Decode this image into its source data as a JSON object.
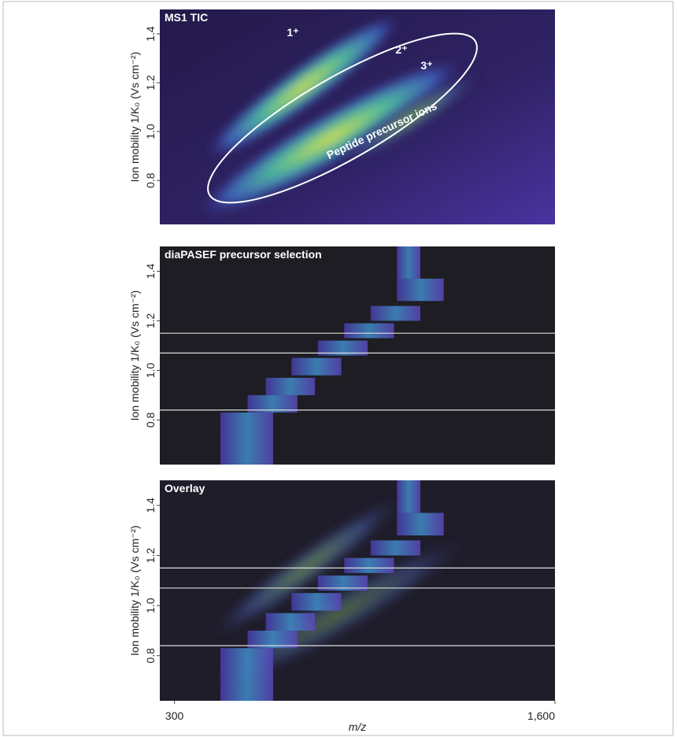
{
  "chart_data": [
    {
      "type": "heatmap",
      "title": "MS1 TIC",
      "ylabel": "Ion mobility 1/K₀ (Vs cm⁻²)",
      "xlim": [
        250,
        1600
      ],
      "ylim": [
        0.62,
        1.5
      ],
      "yticks": [
        0.8,
        {
          "value": 1,
          "label": "1.0"
        },
        1.2,
        1.4
      ],
      "annotations": [
        "1⁺",
        "2⁺",
        "3⁺",
        "Peptide precursor ions"
      ]
    },
    {
      "type": "heatmap",
      "title": "diaPASEF precursor selection",
      "ylabel": "Ion mobility 1/K₀ (Vs cm⁻²)",
      "xlim": [
        250,
        1600
      ],
      "ylim": [
        0.62,
        1.5
      ],
      "yticks": [
        0.8,
        {
          "value": 1,
          "label": "1.0"
        },
        1.2,
        1.4
      ],
      "guide_lines": [
        0.84,
        1.07,
        1.15
      ],
      "windows": [
        {
          "mz": [
            457,
            637
          ],
          "im": [
            0.62,
            0.83
          ]
        },
        {
          "mz": [
            550,
            720
          ],
          "im": [
            0.83,
            0.9
          ]
        },
        {
          "mz": [
            612,
            780
          ],
          "im": [
            0.9,
            0.97
          ]
        },
        {
          "mz": [
            700,
            870
          ],
          "im": [
            0.98,
            1.05
          ]
        },
        {
          "mz": [
            790,
            960
          ],
          "im": [
            1.06,
            1.12
          ]
        },
        {
          "mz": [
            880,
            1050
          ],
          "im": [
            1.13,
            1.19
          ]
        },
        {
          "mz": [
            970,
            1140
          ],
          "im": [
            1.2,
            1.26
          ]
        },
        {
          "mz": [
            1060,
            1220
          ],
          "im": [
            1.28,
            1.37
          ]
        },
        {
          "mz": [
            1060,
            1140
          ],
          "im": [
            1.37,
            1.5
          ]
        }
      ]
    },
    {
      "type": "heatmap",
      "title": "Overlay",
      "ylabel": "Ion mobility 1/K₀ (Vs cm⁻²)",
      "xlabel": "m/z",
      "xlim": [
        250,
        1600
      ],
      "ylim": [
        0.62,
        1.5
      ],
      "yticks": [
        0.8,
        {
          "value": 1,
          "label": "1.0"
        },
        1.2,
        1.4
      ],
      "xticks": [
        300,
        {
          "value": 1600,
          "label": "1,600"
        }
      ],
      "guide_lines": [
        0.84,
        1.07,
        1.15
      ],
      "windows": [
        {
          "mz": [
            457,
            637
          ],
          "im": [
            0.62,
            0.83
          ]
        },
        {
          "mz": [
            550,
            720
          ],
          "im": [
            0.83,
            0.9
          ]
        },
        {
          "mz": [
            612,
            780
          ],
          "im": [
            0.9,
            0.97
          ]
        },
        {
          "mz": [
            700,
            870
          ],
          "im": [
            0.98,
            1.05
          ]
        },
        {
          "mz": [
            790,
            960
          ],
          "im": [
            1.06,
            1.12
          ]
        },
        {
          "mz": [
            880,
            1050
          ],
          "im": [
            1.13,
            1.19
          ]
        },
        {
          "mz": [
            970,
            1140
          ],
          "im": [
            1.2,
            1.26
          ]
        },
        {
          "mz": [
            1060,
            1220
          ],
          "im": [
            1.28,
            1.37
          ]
        },
        {
          "mz": [
            1060,
            1140
          ],
          "im": [
            1.37,
            1.5
          ]
        }
      ]
    }
  ]
}
